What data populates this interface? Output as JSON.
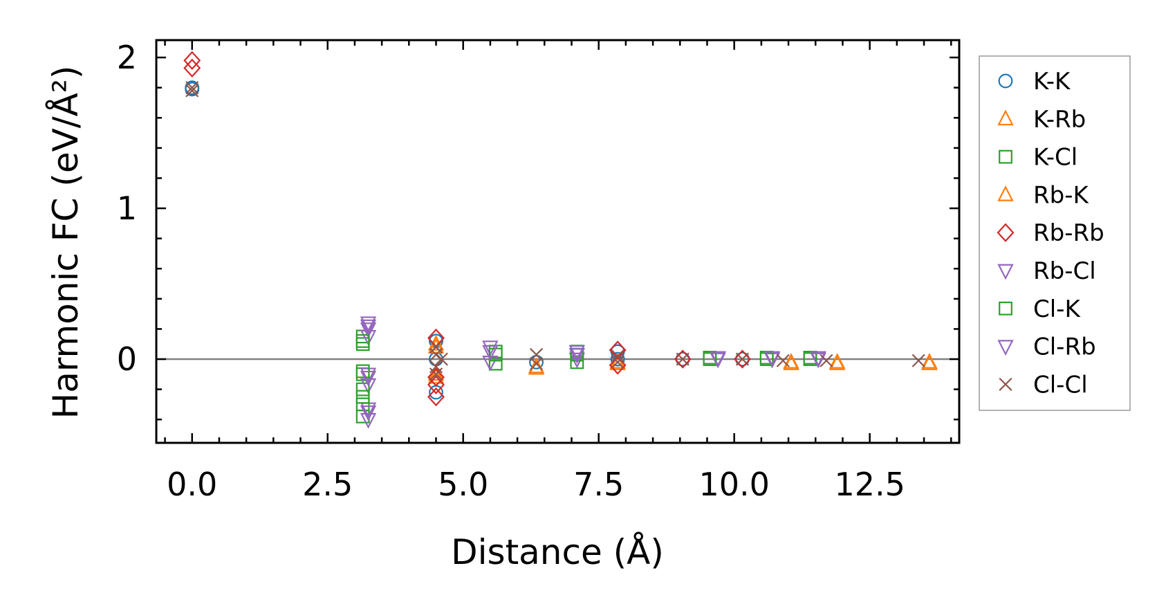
{
  "chart_data": {
    "type": "scatter",
    "xlabel": "Distance (Å)",
    "ylabel": "Harmonic FC (eV/Å²)",
    "xlim": [
      -0.66,
      14.15
    ],
    "ylim": [
      -0.555,
      2.115
    ],
    "xticks": [
      0.0,
      2.5,
      5.0,
      7.5,
      10.0,
      12.5
    ],
    "xtick_labels": [
      "0.0",
      "2.5",
      "5.0",
      "7.5",
      "10.0",
      "12.5"
    ],
    "yticks": [
      0,
      1,
      2
    ],
    "ytick_labels": [
      "0",
      "1",
      "2"
    ],
    "x_minor_step": 0.5,
    "y_minor_step": 0.2,
    "reference_line_y": 0,
    "legend_position": "outside-right",
    "grid": false,
    "series": [
      {
        "name": "K-K",
        "marker": "circle",
        "color": "#1f77b4",
        "points": [
          [
            0,
            1.8
          ],
          [
            0,
            1.79
          ],
          [
            4.5,
            0.12
          ],
          [
            4.5,
            0.0
          ],
          [
            4.5,
            -0.22
          ],
          [
            6.35,
            -0.02
          ],
          [
            7.85,
            0.05
          ],
          [
            7.85,
            0.0
          ],
          [
            9.05,
            0.0
          ],
          [
            10.15,
            0.0
          ]
        ]
      },
      {
        "name": "K-Rb",
        "marker": "triangle-up",
        "color": "#ff7f0e",
        "points": [
          [
            4.5,
            0.1
          ],
          [
            4.5,
            -0.1
          ],
          [
            6.35,
            -0.06
          ],
          [
            7.85,
            -0.03
          ],
          [
            11.05,
            -0.02
          ],
          [
            11.9,
            -0.02
          ],
          [
            13.6,
            -0.02
          ]
        ]
      },
      {
        "name": "K-Cl",
        "marker": "square",
        "color": "#2ca02c",
        "points": [
          [
            3.15,
            0.15
          ],
          [
            3.15,
            0.1
          ],
          [
            3.15,
            -0.1
          ],
          [
            3.15,
            -0.2
          ],
          [
            3.15,
            -0.3
          ],
          [
            3.15,
            -0.38
          ],
          [
            5.6,
            0.05
          ],
          [
            5.6,
            -0.03
          ],
          [
            7.1,
            0.05
          ],
          [
            7.1,
            -0.02
          ],
          [
            9.55,
            0.01
          ],
          [
            10.6,
            0.01
          ],
          [
            11.4,
            0.01
          ]
        ]
      },
      {
        "name": "Rb-K",
        "marker": "triangle-up",
        "color": "#ff7f0e",
        "points": [
          [
            4.5,
            0.08
          ],
          [
            4.5,
            -0.12
          ],
          [
            6.35,
            -0.05
          ],
          [
            7.85,
            -0.02
          ],
          [
            11.05,
            -0.03
          ],
          [
            11.9,
            -0.03
          ],
          [
            13.6,
            -0.03
          ]
        ]
      },
      {
        "name": "Rb-Rb",
        "marker": "diamond",
        "color": "#d62728",
        "points": [
          [
            0,
            1.98
          ],
          [
            0,
            1.93
          ],
          [
            4.5,
            0.14
          ],
          [
            4.5,
            -0.12
          ],
          [
            4.5,
            -0.17
          ],
          [
            4.5,
            -0.25
          ],
          [
            7.85,
            0.06
          ],
          [
            7.85,
            -0.04
          ],
          [
            9.05,
            0.0
          ],
          [
            10.15,
            0.0
          ]
        ]
      },
      {
        "name": "Rb-Cl",
        "marker": "triangle-down",
        "color": "#9467bd",
        "points": [
          [
            3.25,
            0.24
          ],
          [
            3.25,
            0.2
          ],
          [
            3.25,
            0.15
          ],
          [
            3.25,
            -0.1
          ],
          [
            3.25,
            -0.17
          ],
          [
            3.25,
            -0.33
          ],
          [
            3.25,
            -0.4
          ],
          [
            5.5,
            0.08
          ],
          [
            5.5,
            -0.02
          ],
          [
            7.1,
            0.05
          ],
          [
            7.1,
            0.0
          ],
          [
            9.7,
            0.01
          ],
          [
            10.7,
            0.0
          ],
          [
            11.55,
            0.01
          ]
        ]
      },
      {
        "name": "Cl-K",
        "marker": "square",
        "color": "#2ca02c",
        "points": [
          [
            3.15,
            0.12
          ],
          [
            3.15,
            -0.08
          ],
          [
            3.15,
            -0.25
          ],
          [
            5.6,
            0.03
          ],
          [
            7.1,
            0.03
          ],
          [
            9.55,
            0.0
          ],
          [
            10.6,
            0.0
          ],
          [
            11.4,
            0.0
          ]
        ]
      },
      {
        "name": "Cl-Rb",
        "marker": "triangle-down",
        "color": "#9467bd",
        "points": [
          [
            3.25,
            0.22
          ],
          [
            3.25,
            -0.12
          ],
          [
            3.25,
            -0.35
          ],
          [
            5.5,
            0.05
          ],
          [
            7.1,
            0.03
          ],
          [
            9.7,
            0.0
          ],
          [
            10.7,
            0.01
          ],
          [
            11.55,
            0.0
          ]
        ]
      },
      {
        "name": "Cl-Cl",
        "marker": "x",
        "color": "#8c564b",
        "points": [
          [
            0,
            1.8
          ],
          [
            0,
            1.78
          ],
          [
            4.5,
            0.08
          ],
          [
            4.5,
            0.03
          ],
          [
            4.5,
            -0.05
          ],
          [
            4.5,
            -0.1
          ],
          [
            4.6,
            0.0
          ],
          [
            6.35,
            0.03
          ],
          [
            6.35,
            -0.03
          ],
          [
            7.85,
            0.02
          ],
          [
            7.85,
            -0.02
          ],
          [
            9.05,
            0.0
          ],
          [
            10.15,
            0.0
          ],
          [
            10.9,
            -0.01
          ],
          [
            11.7,
            -0.01
          ],
          [
            13.4,
            -0.01
          ]
        ]
      }
    ]
  }
}
